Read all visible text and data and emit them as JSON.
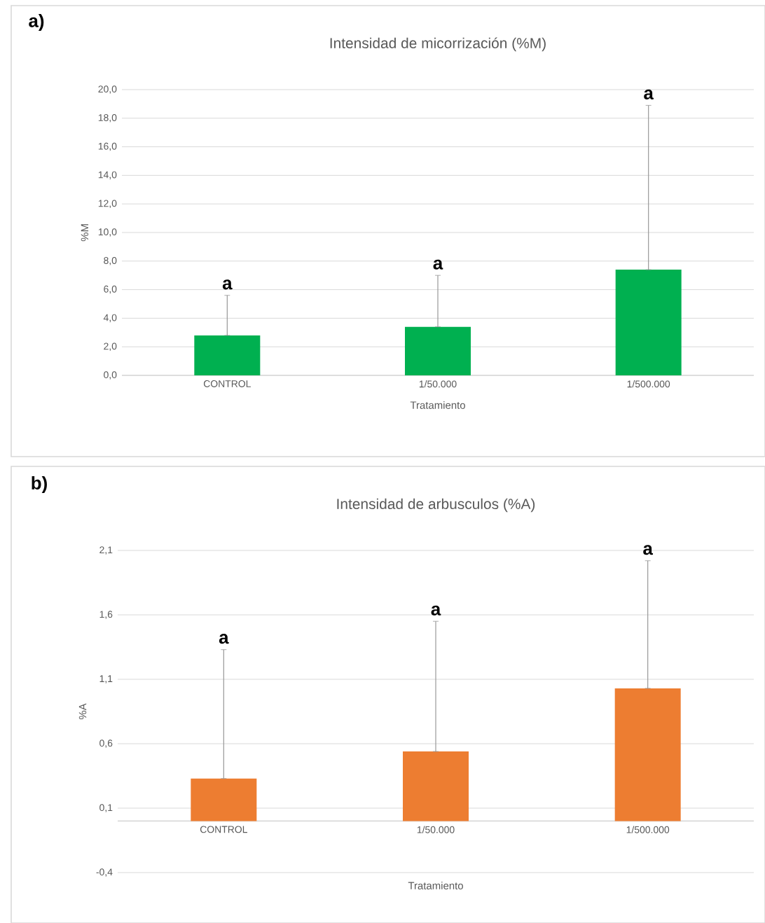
{
  "chart_data": [
    {
      "type": "bar",
      "title": "Intensidad de micorrización (%M)",
      "xlabel": "Tratamiento",
      "ylabel": "%M",
      "categories": [
        "CONTROL",
        "1/50.000",
        "1/500.000"
      ],
      "series": [
        {
          "color": "#00b050",
          "values": [
            2.8,
            3.4,
            7.4
          ],
          "errors": [
            [
              2.8,
              5.6
            ],
            [
              3.4,
              7.0
            ],
            [
              7.4,
              18.9
            ]
          ]
        }
      ],
      "ylim": [
        0,
        20
      ],
      "yticks": [
        {
          "value": 0,
          "label": "0,0"
        },
        {
          "value": 2,
          "label": "2,0"
        },
        {
          "value": 4,
          "label": "4,0"
        },
        {
          "value": 6,
          "label": "6,0"
        },
        {
          "value": 8,
          "label": "8,0"
        },
        {
          "value": 10,
          "label": "10,0"
        },
        {
          "value": 12,
          "label": "12,0"
        },
        {
          "value": 14,
          "label": "14,0"
        },
        {
          "value": 16,
          "label": "16,0"
        },
        {
          "value": 18,
          "label": "18,0"
        },
        {
          "value": 20,
          "label": "20,0"
        }
      ],
      "grid": "y",
      "annotations": [
        "a)",
        {
          "text": "a",
          "x": "CONTROL",
          "y": 5.6
        },
        {
          "text": "a",
          "x": "1/50.000",
          "y": 7.0
        },
        {
          "text": "a",
          "x": "1/500.000",
          "y": 18.9
        }
      ]
    },
    {
      "type": "bar",
      "title": "Intensidad de arbusculos (%A)",
      "xlabel": "Tratamiento",
      "ylabel": "%A",
      "categories": [
        "CONTROL",
        "1/50.000",
        "1/500.000"
      ],
      "series": [
        {
          "color": "#ed7d31",
          "values": [
            0.33,
            0.54,
            1.03
          ],
          "errors": [
            [
              0.33,
              1.33
            ],
            [
              0.54,
              1.55
            ],
            [
              1.03,
              2.02
            ]
          ]
        }
      ],
      "ylim": [
        -0.4,
        2.1
      ],
      "yticks": [
        {
          "value": -0.4,
          "label": "-0,4"
        },
        {
          "value": 0.1,
          "label": "0,1"
        },
        {
          "value": 0.6,
          "label": "0,6"
        },
        {
          "value": 1.1,
          "label": "1,1"
        },
        {
          "value": 1.6,
          "label": "1,6"
        },
        {
          "value": 2.1,
          "label": "2,1"
        }
      ],
      "grid": "y",
      "annotations": [
        "b)",
        {
          "text": "a",
          "x": "CONTROL",
          "y": 1.33
        },
        {
          "text": "a",
          "x": "1/50.000",
          "y": 1.55
        },
        {
          "text": "a",
          "x": "1/500.000",
          "y": 2.02
        }
      ]
    }
  ]
}
